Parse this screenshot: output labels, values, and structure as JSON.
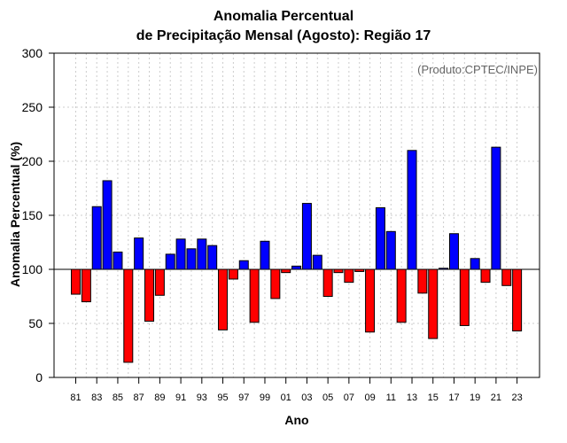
{
  "chart_data": {
    "type": "bar",
    "title_line1": "Anomalia Percentual",
    "title_line2": "de Precipitação Mensal (Agosto): Região 17",
    "xlabel": "Ano",
    "ylabel": "Anomalia Percentual (%)",
    "source_note": "(Produto:CPTEC/INPE)",
    "baseline": 100,
    "ylim": [
      0,
      300
    ],
    "yticks": [
      0,
      50,
      100,
      150,
      200,
      250,
      300
    ],
    "grid": true,
    "categories": [
      "81",
      "82",
      "83",
      "84",
      "85",
      "86",
      "87",
      "88",
      "89",
      "90",
      "91",
      "92",
      "93",
      "94",
      "95",
      "96",
      "97",
      "98",
      "99",
      "00",
      "01",
      "02",
      "03",
      "04",
      "05",
      "06",
      "07",
      "08",
      "09",
      "10",
      "11",
      "12",
      "13",
      "14",
      "15",
      "16",
      "17",
      "18",
      "19",
      "20",
      "21",
      "22",
      "23"
    ],
    "xtick_labels": [
      "81",
      "83",
      "85",
      "87",
      "89",
      "91",
      "93",
      "95",
      "97",
      "99",
      "01",
      "03",
      "05",
      "07",
      "09",
      "11",
      "13",
      "15",
      "17",
      "19",
      "21",
      "23"
    ],
    "values": [
      77,
      70,
      158,
      182,
      116,
      14,
      129,
      52,
      76,
      114,
      128,
      119,
      128,
      122,
      44,
      91,
      108,
      51,
      126,
      73,
      97,
      103,
      161,
      113,
      75,
      97,
      88,
      98,
      42,
      157,
      135,
      51,
      210,
      78,
      36,
      101,
      133,
      48,
      110,
      88,
      213,
      85,
      43
    ],
    "colors": {
      "above": "#0000ff",
      "below": "#ff0000",
      "outline": "#000000",
      "grid": "#cccccc"
    }
  }
}
